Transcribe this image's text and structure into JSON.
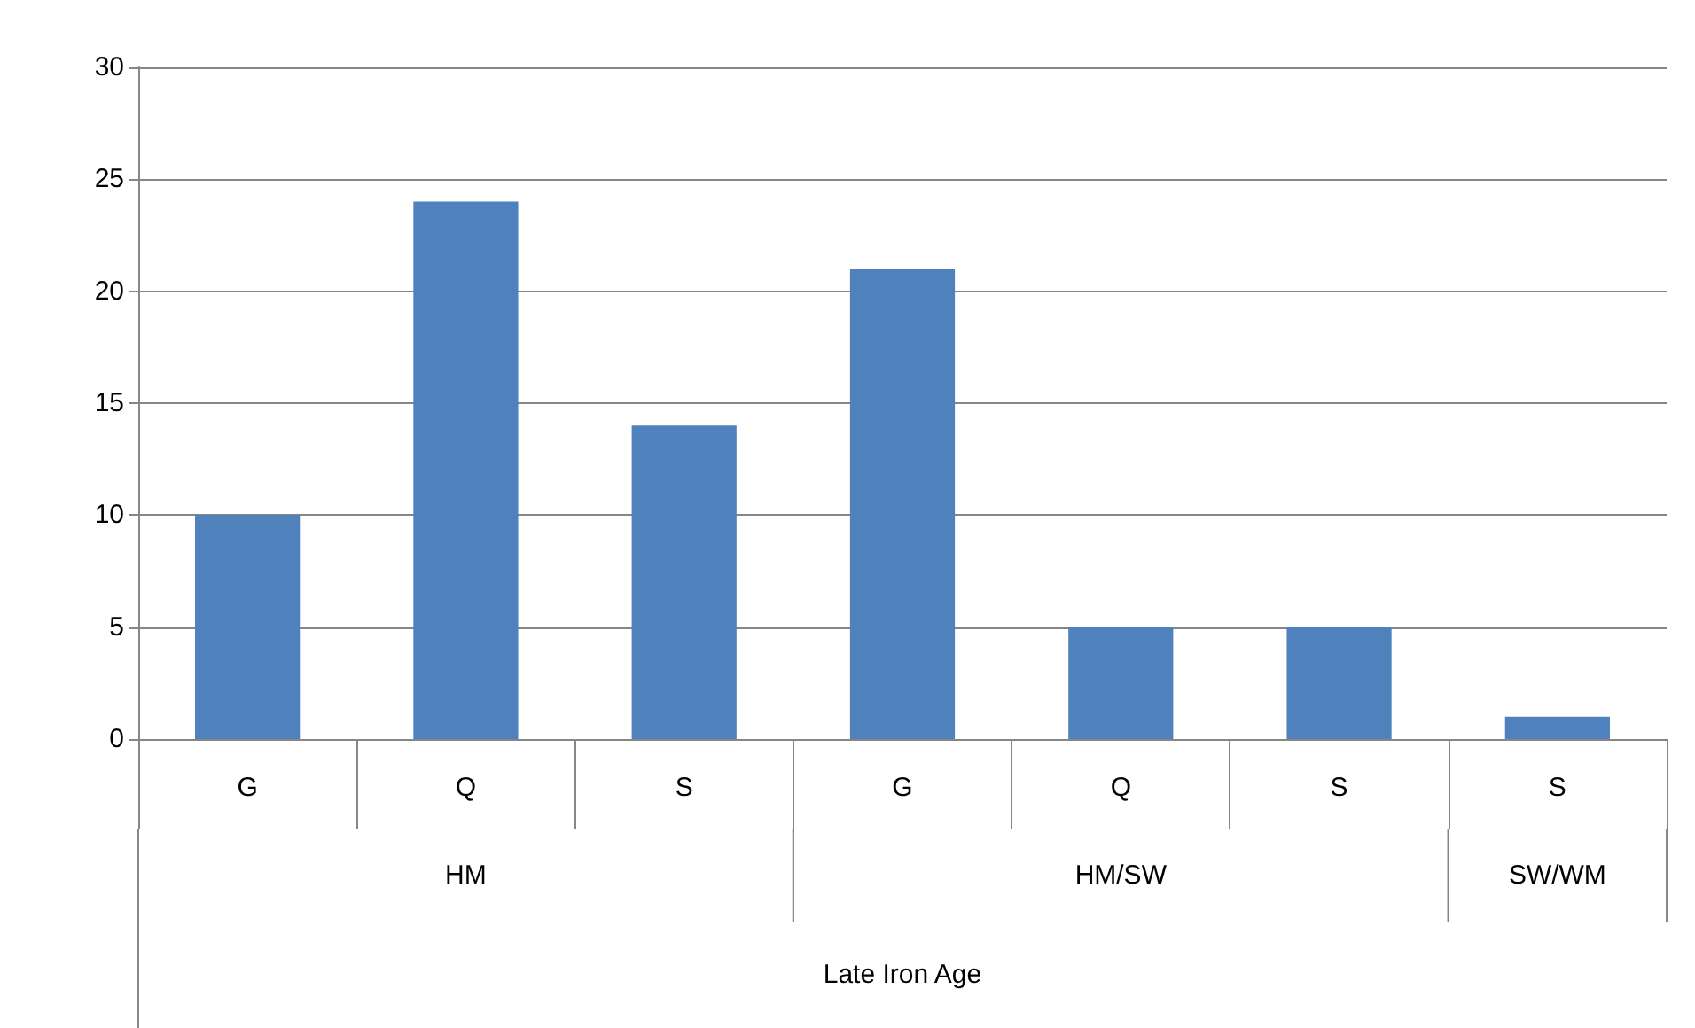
{
  "chart_data": {
    "type": "bar",
    "categories": [
      "G",
      "Q",
      "S",
      "G",
      "Q",
      "S",
      "S"
    ],
    "values": [
      10,
      24,
      14,
      21,
      5,
      5,
      1
    ],
    "color": "#4f81bd",
    "ylim": [
      0,
      30
    ],
    "yticks": [
      0,
      5,
      10,
      15,
      20,
      25,
      30
    ],
    "grid": "y",
    "annotations": [
      "HM",
      "HM/SW",
      "SW/WM",
      "Late Iron Age"
    ]
  }
}
